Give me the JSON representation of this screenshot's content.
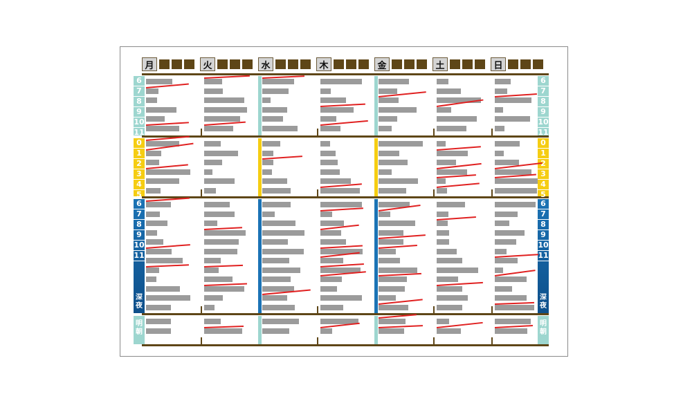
{
  "days": [
    "月",
    "火",
    "水",
    "木",
    "金",
    "土",
    "日"
  ],
  "hours": {
    "morning": [
      "6",
      "7",
      "8",
      "9",
      "10",
      "11"
    ],
    "night": [
      "0",
      "1",
      "2",
      "3",
      "4",
      "5"
    ],
    "evening": [
      "6",
      "7",
      "8",
      "9",
      "10",
      "11"
    ],
    "late_night": "深夜",
    "dawn": "明朝"
  },
  "colors": {
    "frame_brown": "#5e4617",
    "morning_band": "#9dd6cf",
    "night_band": "#f5cd12",
    "evening_band": "#1b73b5",
    "dawn_band": "#9dd6cf",
    "bar_gray": "#9b9b9b",
    "strike_red": "#e02020"
  }
}
